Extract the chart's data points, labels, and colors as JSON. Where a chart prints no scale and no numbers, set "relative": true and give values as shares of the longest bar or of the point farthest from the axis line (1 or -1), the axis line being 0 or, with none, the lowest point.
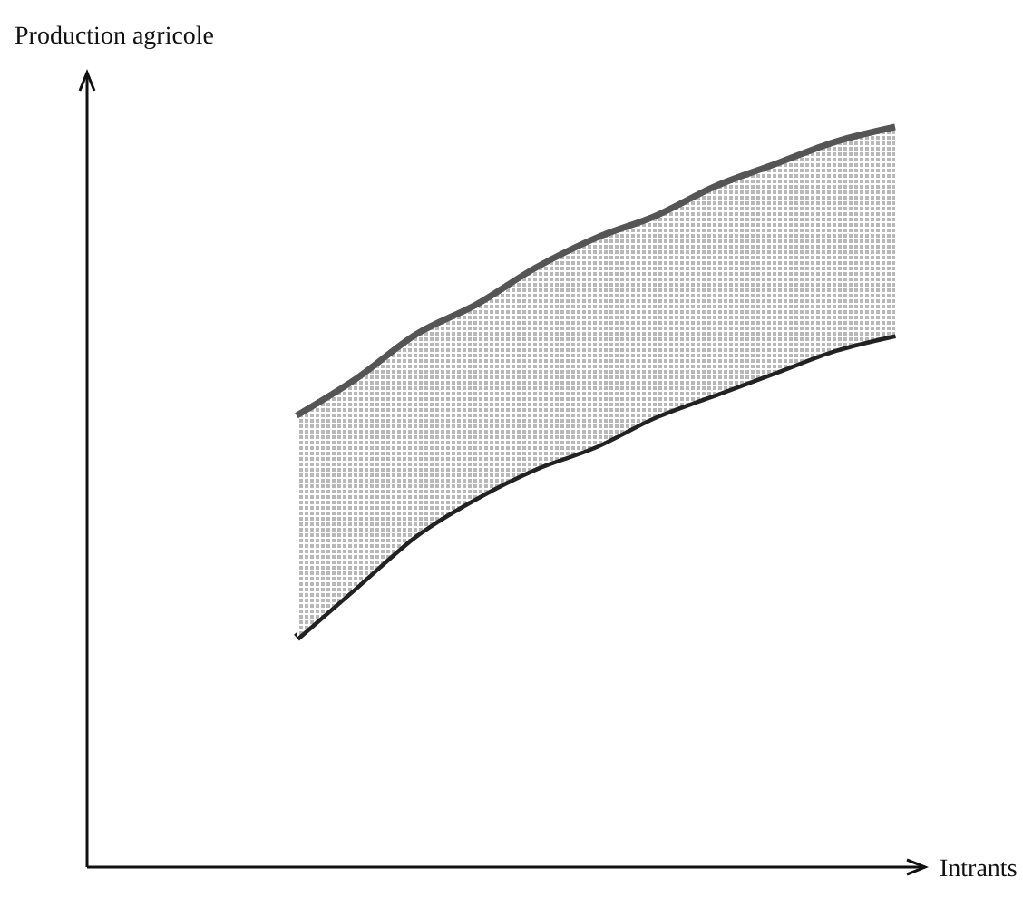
{
  "chart_data": {
    "type": "area",
    "relative": true,
    "stacked": true,
    "xlabel": "Intrants",
    "ylabel": "Production agricole",
    "categories": [
      null,
      null,
      null,
      null,
      null,
      null,
      null,
      null,
      null,
      null,
      null,
      null,
      null,
      null
    ],
    "series": [
      {
        "color": "#ffffff",
        "values": [
          null,
          null,
          null,
          0.31,
          0.38,
          0.45,
          0.5,
          0.54,
          0.57,
          0.61,
          0.64,
          0.67,
          0.7,
          0.72
        ]
      },
      {
        "color": "#b8b8b8",
        "values": [
          null,
          null,
          null,
          0.3,
          0.28,
          0.27,
          0.26,
          0.27,
          0.28,
          0.27,
          0.28,
          0.28,
          0.28,
          0.28
        ]
      }
    ]
  }
}
